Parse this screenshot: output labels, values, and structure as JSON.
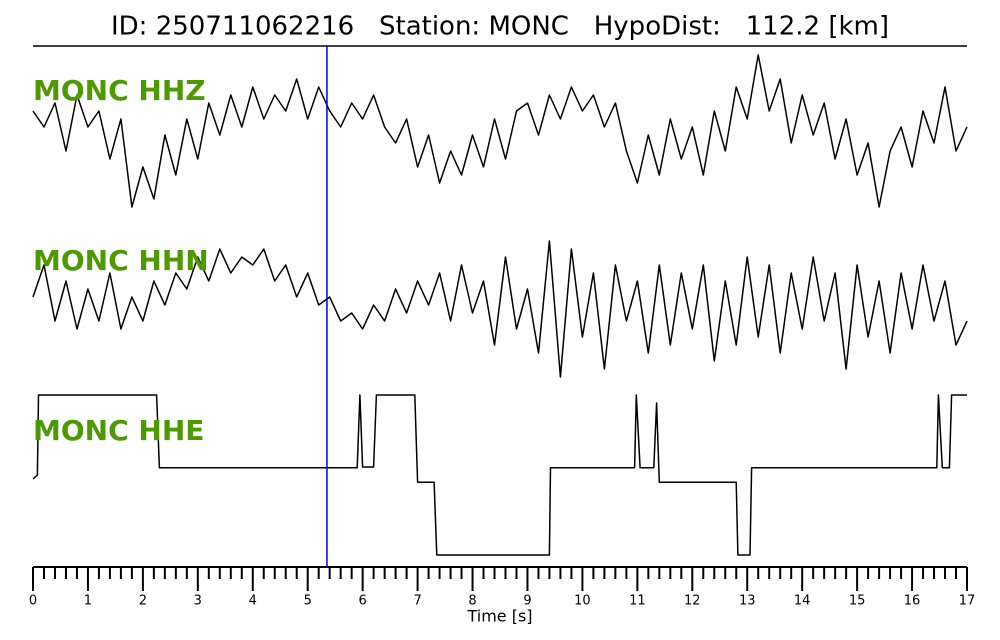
{
  "chart_data": {
    "type": "seismogram",
    "title": "ID: 250711062216   Station: MONC   HypoDist:   112.2 [km]",
    "xlabel": "Time [s]",
    "xlim": [
      0,
      17
    ],
    "xticks": [
      0,
      1,
      2,
      3,
      4,
      5,
      6,
      7,
      8,
      9,
      10,
      11,
      12,
      13,
      14,
      15,
      16,
      17
    ],
    "xminorticks": [
      0.2,
      0.4,
      0.6,
      0.8,
      1.2,
      1.4,
      1.6,
      1.8,
      2.2,
      2.4,
      2.6,
      2.8,
      3.2,
      3.4,
      3.6,
      3.8,
      4.2,
      4.4,
      4.6,
      4.8,
      5.2,
      5.4,
      5.6,
      5.8,
      6.2,
      6.4,
      6.6,
      6.8,
      7.2,
      7.4,
      7.6,
      7.8,
      8.2,
      8.4,
      8.6,
      8.8,
      9.2,
      9.4,
      9.6,
      9.8,
      10.2,
      10.4,
      10.6,
      10.8,
      11.2,
      11.4,
      11.6,
      11.8,
      12.2,
      12.4,
      12.6,
      12.8,
      13.2,
      13.4,
      13.6,
      13.8,
      14.2,
      14.4,
      14.6,
      14.8,
      15.2,
      15.4,
      15.6,
      15.8,
      16.2,
      16.4,
      16.6,
      16.8
    ],
    "ylim": [
      -1,
      1
    ],
    "pick_line": {
      "x": 5.35,
      "color": "#0000dd"
    },
    "x": [
      0,
      0.2,
      0.4,
      0.6,
      0.8,
      1,
      1.2,
      1.4,
      1.6,
      1.8,
      2,
      2.2,
      2.4,
      2.6,
      2.8,
      3,
      3.2,
      3.4,
      3.6,
      3.8,
      4,
      4.2,
      4.4,
      4.6,
      4.8,
      5,
      5.2,
      5.4,
      5.6,
      5.8,
      6,
      6.2,
      6.4,
      6.6,
      6.8,
      7,
      7.2,
      7.4,
      7.6,
      7.8,
      8,
      8.2,
      8.4,
      8.6,
      8.8,
      9,
      9.2,
      9.4,
      9.6,
      9.8,
      10,
      10.2,
      10.4,
      10.6,
      10.8,
      11,
      11.2,
      11.4,
      11.6,
      11.8,
      12,
      12.2,
      12.4,
      12.6,
      12.8,
      13,
      13.2,
      13.4,
      13.6,
      13.8,
      14,
      14.2,
      14.4,
      14.6,
      14.8,
      15,
      15.2,
      15.4,
      15.6,
      15.8,
      16,
      16.2,
      16.4,
      16.6,
      16.8,
      17
    ],
    "label_color": "#4c9a00",
    "series": [
      {
        "name": "MONC HHZ",
        "color": "#000000",
        "values": [
          0.3,
          0.1,
          0.4,
          -0.2,
          0.5,
          0.1,
          0.3,
          -0.3,
          0.2,
          -0.9,
          -0.4,
          -0.8,
          0.0,
          -0.5,
          0.2,
          -0.3,
          0.4,
          0.0,
          0.5,
          0.1,
          0.6,
          0.2,
          0.5,
          0.3,
          0.7,
          0.2,
          0.6,
          0.3,
          0.1,
          0.4,
          0.2,
          0.5,
          0.1,
          -0.1,
          0.2,
          -0.4,
          0.0,
          -0.6,
          -0.2,
          -0.5,
          0.0,
          -0.4,
          0.2,
          -0.3,
          0.3,
          0.4,
          0.0,
          0.5,
          0.2,
          0.6,
          0.3,
          0.5,
          0.1,
          0.4,
          -0.2,
          -0.6,
          0.0,
          -0.5,
          0.2,
          -0.3,
          0.1,
          -0.5,
          0.3,
          -0.2,
          0.6,
          0.2,
          1.0,
          0.3,
          0.7,
          -0.1,
          0.5,
          0.0,
          0.4,
          -0.3,
          0.2,
          -0.5,
          -0.1,
          -0.9,
          -0.2,
          0.1,
          -0.4,
          0.3,
          -0.1,
          0.6,
          -0.2,
          0.1
        ]
      },
      {
        "name": "MONC HHN",
        "color": "#000000",
        "values": [
          0.1,
          0.5,
          -0.2,
          0.3,
          -0.3,
          0.2,
          -0.2,
          0.4,
          -0.3,
          0.1,
          -0.2,
          0.3,
          0.0,
          0.4,
          0.2,
          0.6,
          0.3,
          0.7,
          0.4,
          0.6,
          0.5,
          0.7,
          0.3,
          0.5,
          0.1,
          0.4,
          0.0,
          0.1,
          -0.2,
          -0.1,
          -0.3,
          0.0,
          -0.2,
          0.2,
          -0.1,
          0.3,
          0.0,
          0.4,
          -0.2,
          0.5,
          -0.1,
          0.3,
          -0.5,
          0.6,
          -0.3,
          0.2,
          -0.6,
          0.8,
          -0.9,
          0.7,
          -0.4,
          0.4,
          -0.8,
          0.5,
          -0.2,
          0.3,
          -0.6,
          0.5,
          -0.5,
          0.4,
          -0.3,
          0.5,
          -0.7,
          0.3,
          -0.5,
          0.6,
          -0.4,
          0.5,
          -0.6,
          0.4,
          -0.3,
          0.6,
          -0.2,
          0.4,
          -0.8,
          0.5,
          -0.4,
          0.3,
          -0.6,
          0.4,
          -0.3,
          0.5,
          -0.2,
          0.3,
          -0.5,
          -0.2
        ]
      },
      {
        "name": "MONC HHE",
        "color": "#000000",
        "x": [
          0,
          0.08,
          0.1,
          2.25,
          2.3,
          5.9,
          5.95,
          6.0,
          6.2,
          6.25,
          6.95,
          7.0,
          7.3,
          7.35,
          9.4,
          9.42,
          10.95,
          10.98,
          11.05,
          11.3,
          11.35,
          11.4,
          12.8,
          12.83,
          13.05,
          13.08,
          16.45,
          16.48,
          16.55,
          16.68,
          16.72,
          17
        ],
        "values": [
          -0.05,
          0.0,
          1.0,
          1.0,
          0.09,
          0.09,
          1.0,
          0.1,
          0.1,
          1.0,
          1.0,
          -0.09,
          -0.09,
          -1.0,
          -1.0,
          0.09,
          0.09,
          1.0,
          0.09,
          0.09,
          0.9,
          -0.09,
          -0.09,
          -1.0,
          -1.0,
          0.09,
          0.09,
          1.0,
          0.09,
          0.09,
          1.0,
          1.0
        ]
      }
    ]
  }
}
